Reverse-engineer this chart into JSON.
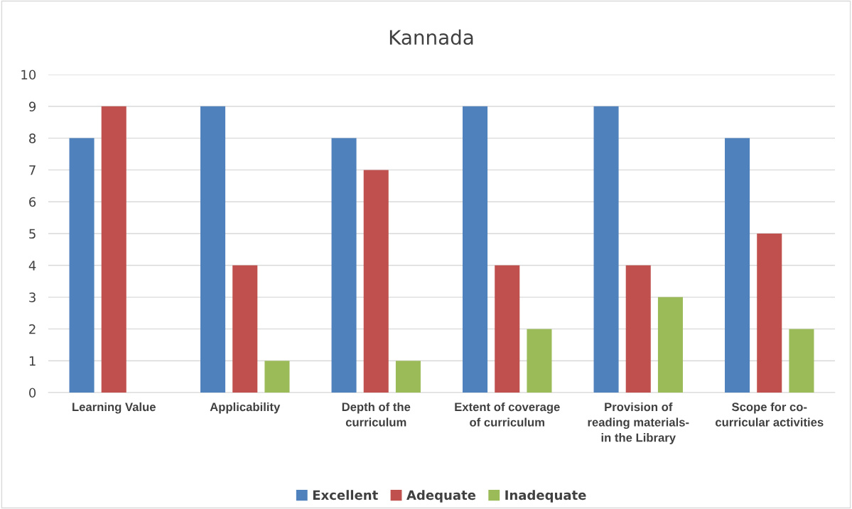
{
  "chart_data": {
    "type": "bar",
    "title": "Kannada",
    "categories": [
      "Learning Value",
      "Applicability",
      "Depth of the\ncurriculum",
      "Extent of coverage\nof curriculum",
      "Provision of\nreading materials-\nin the Library",
      "Scope for co-\ncurricular activities"
    ],
    "series": [
      {
        "name": "Excellent",
        "color": "#4f81bd",
        "values": [
          8,
          9,
          8,
          9,
          9,
          8
        ]
      },
      {
        "name": "Adequate",
        "color": "#c0504d",
        "values": [
          9,
          4,
          7,
          4,
          4,
          5
        ]
      },
      {
        "name": "Inadequate",
        "color": "#9bbb59",
        "values": [
          0,
          1,
          1,
          2,
          3,
          2
        ]
      }
    ],
    "ylim": [
      0,
      10
    ],
    "yticks": [
      0,
      1,
      2,
      3,
      4,
      5,
      6,
      7,
      8,
      9,
      10
    ],
    "grid": "y",
    "legend": "bottom"
  }
}
